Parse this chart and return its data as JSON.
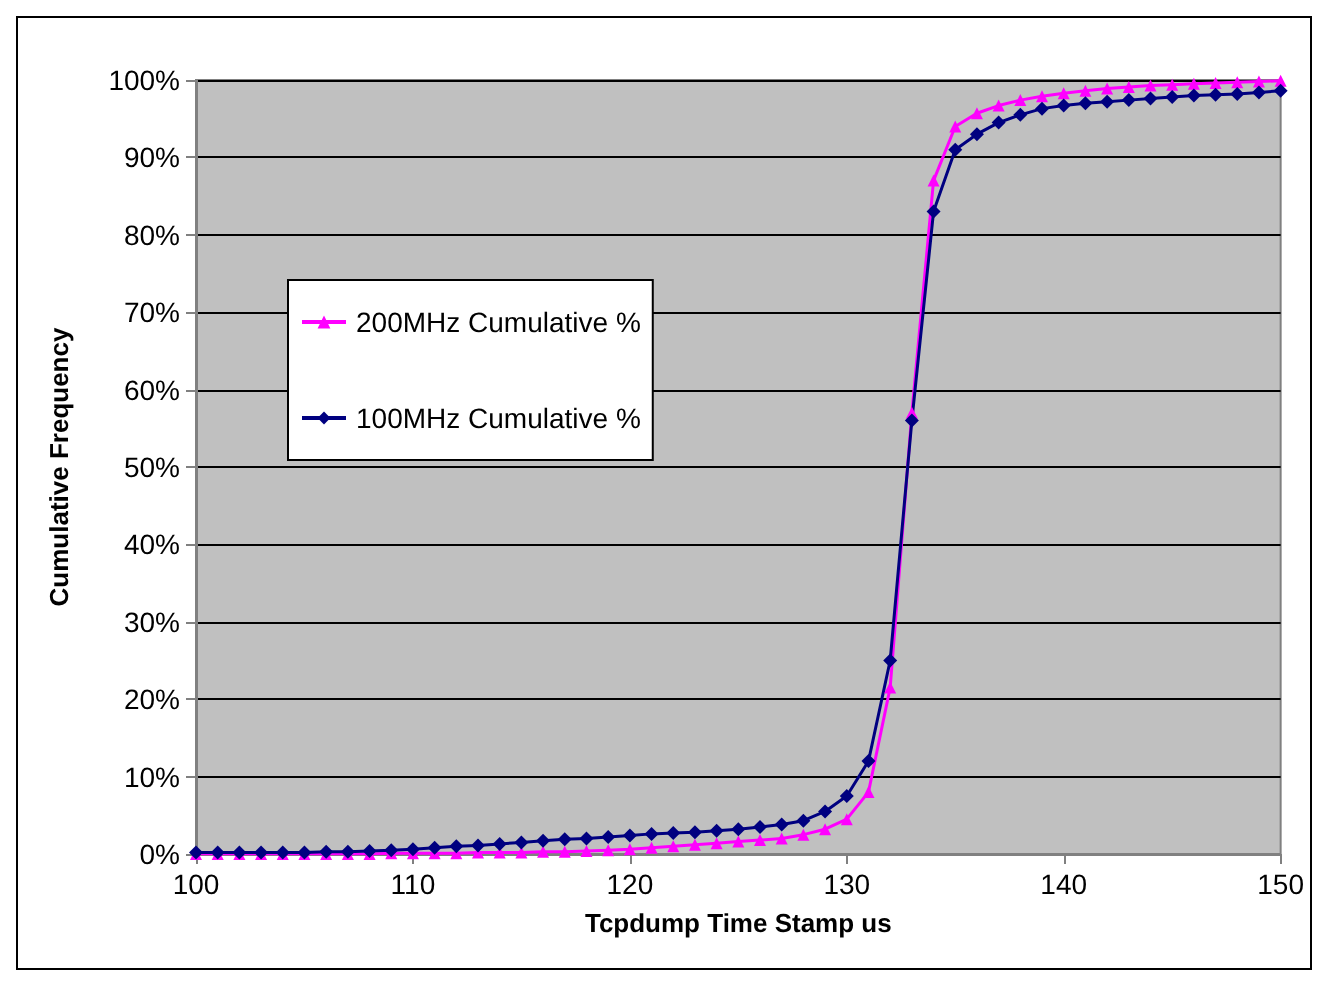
{
  "chart_data": {
    "type": "line",
    "xlabel": "Tcpdump Time Stamp us",
    "ylabel": "Cumulative Frequency",
    "x": [
      100,
      101,
      102,
      103,
      104,
      105,
      106,
      107,
      108,
      109,
      110,
      111,
      112,
      113,
      114,
      115,
      116,
      117,
      118,
      119,
      120,
      121,
      122,
      123,
      124,
      125,
      126,
      127,
      128,
      129,
      130,
      131,
      132,
      133,
      134,
      135,
      136,
      137,
      138,
      139,
      140,
      141,
      142,
      143,
      144,
      145,
      146,
      147,
      148,
      149,
      150
    ],
    "series": [
      {
        "name": "200MHz Cumulative %",
        "color": "#ff00ff",
        "marker": "triangle",
        "values": [
          0,
          0,
          0,
          0,
          0,
          0,
          0,
          0,
          0,
          0.1,
          0.1,
          0.1,
          0.1,
          0.2,
          0.2,
          0.2,
          0.3,
          0.3,
          0.4,
          0.5,
          0.6,
          0.8,
          1.0,
          1.2,
          1.4,
          1.6,
          1.8,
          2.0,
          2.5,
          3.2,
          4.5,
          8,
          21.5,
          57,
          87,
          94,
          95.7,
          96.7,
          97.4,
          97.9,
          98.3,
          98.6,
          98.9,
          99.1,
          99.3,
          99.4,
          99.5,
          99.6,
          99.7,
          99.8,
          99.9
        ]
      },
      {
        "name": "100MHz Cumulative %",
        "color": "#000080",
        "marker": "diamond",
        "values": [
          0.2,
          0.2,
          0.2,
          0.2,
          0.2,
          0.2,
          0.3,
          0.3,
          0.4,
          0.5,
          0.6,
          0.8,
          1.0,
          1.1,
          1.3,
          1.5,
          1.7,
          1.9,
          2.0,
          2.2,
          2.4,
          2.6,
          2.7,
          2.8,
          3.0,
          3.2,
          3.5,
          3.8,
          4.3,
          5.5,
          7.5,
          12,
          25,
          56,
          83,
          91,
          93,
          94.5,
          95.5,
          96.3,
          96.7,
          97,
          97.2,
          97.4,
          97.6,
          97.8,
          98,
          98.1,
          98.2,
          98.4,
          98.6
        ]
      }
    ],
    "xlim": [
      100,
      150
    ],
    "xticks": [
      100,
      110,
      120,
      130,
      140,
      150
    ],
    "ylim": [
      0,
      100
    ],
    "yticks": [
      {
        "value": 0,
        "label": "0%"
      },
      {
        "value": 10,
        "label": "10%"
      },
      {
        "value": 20,
        "label": "20%"
      },
      {
        "value": 30,
        "label": "30%"
      },
      {
        "value": 40,
        "label": "40%"
      },
      {
        "value": 50,
        "label": "50%"
      },
      {
        "value": 60,
        "label": "60%"
      },
      {
        "value": 70,
        "label": "70%"
      },
      {
        "value": 80,
        "label": "80%"
      },
      {
        "value": 90,
        "label": "90%"
      },
      {
        "value": 100,
        "label": "100%"
      }
    ],
    "grid": "y",
    "legend": "top left"
  }
}
